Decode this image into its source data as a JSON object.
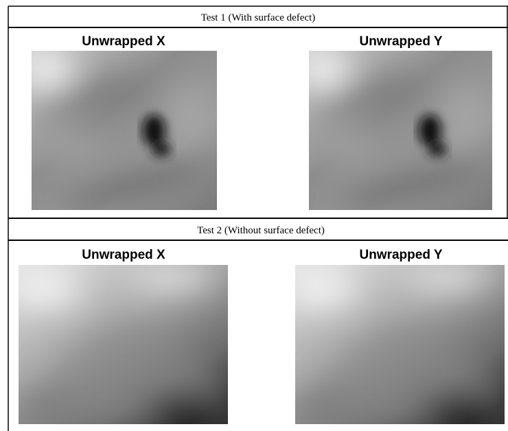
{
  "tests": [
    {
      "title": "Test 1 (With surface defect)",
      "panels": [
        {
          "title": "Unwrapped X"
        },
        {
          "title": "Unwrapped Y"
        }
      ]
    },
    {
      "title": "Test 2 (Without surface defect)",
      "panels": [
        {
          "title": "Unwrapped X"
        },
        {
          "title": "Unwrapped Y"
        }
      ]
    }
  ]
}
